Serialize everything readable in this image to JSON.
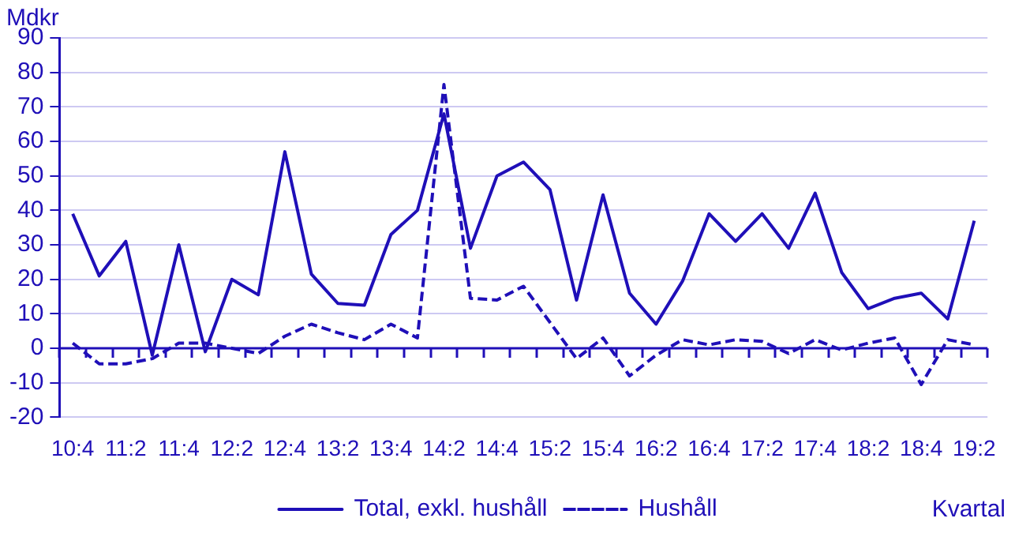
{
  "chart_data": {
    "type": "line",
    "ylabel": "Mdkr",
    "xlabel": "Kvartal",
    "categories": [
      "10:4",
      null,
      "11:2",
      null,
      "11:4",
      null,
      "12:2",
      null,
      "12:4",
      null,
      "13:2",
      null,
      "13:4",
      null,
      "14:2",
      null,
      "14:4",
      null,
      "15:2",
      null,
      "15:4",
      null,
      "16:2",
      null,
      "16:4",
      null,
      "17:2",
      null,
      "17:4",
      null,
      "18:2",
      null,
      "18:4",
      null,
      "19:2"
    ],
    "series": [
      {
        "name": "Total, exkl. hushåll",
        "color": "#1f0fb8",
        "line_style": "solid",
        "values": [
          39,
          21,
          31,
          -2,
          30,
          -1,
          20,
          15.5,
          57,
          21.5,
          13,
          12.5,
          33,
          40,
          68,
          29,
          50,
          54,
          46,
          14,
          44.5,
          16,
          7,
          19.5,
          39,
          31,
          39,
          29,
          45,
          22,
          11.5,
          14.5,
          16,
          8.5,
          37
        ]
      },
      {
        "name": "Hushåll",
        "color": "#1f0fb8",
        "line_style": "dashed",
        "values": [
          1.5,
          -4.5,
          -4.5,
          -3,
          1.5,
          1.5,
          0,
          -1.5,
          3.5,
          7,
          4.5,
          2.5,
          7,
          3,
          76.5,
          14.5,
          14,
          18,
          7.5,
          -3,
          3,
          -8,
          -2,
          2.5,
          1,
          2.5,
          2,
          -1.5,
          2.5,
          -0.5,
          1.5,
          3,
          -10.5,
          2.5,
          1
        ]
      }
    ],
    "ylim": [
      -20,
      90
    ],
    "yticks": [
      -20,
      -10,
      0,
      10,
      20,
      30,
      40,
      50,
      60,
      70,
      80,
      90
    ],
    "ref_lines": [
      {
        "axis": "y",
        "value": 0,
        "color": "#1f0fb8"
      }
    ],
    "grid": "y",
    "legend": "bottom",
    "marker": "none"
  }
}
